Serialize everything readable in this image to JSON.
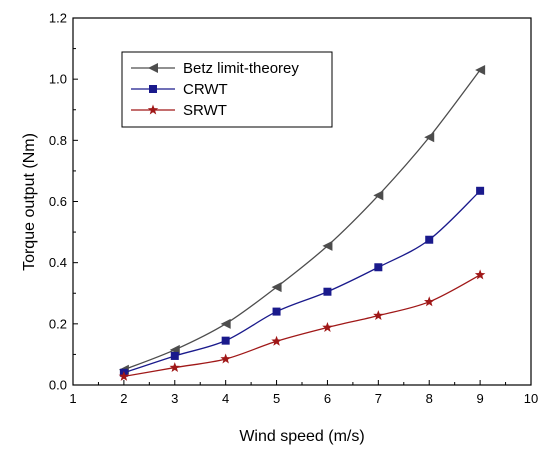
{
  "chart_data": {
    "type": "line",
    "title": "",
    "xlabel": "Wind speed (m/s)",
    "ylabel": "Torque output (Nm)",
    "xlim": [
      1,
      10
    ],
    "ylim": [
      0,
      1.2
    ],
    "x_ticks": [
      "1",
      "2",
      "3",
      "4",
      "5",
      "6",
      "7",
      "8",
      "9",
      "10"
    ],
    "y_ticks": [
      "0.0",
      "0.2",
      "0.4",
      "0.6",
      "0.8",
      "1.0",
      "1.2"
    ],
    "x": [
      2,
      3,
      4,
      5,
      6,
      7,
      8,
      9
    ],
    "grid": false,
    "legend_position": "top-left",
    "series": [
      {
        "name": "Betz limit-theorey",
        "color": "#4d4d4d",
        "marker": "triangle-left",
        "values": [
          0.05,
          0.115,
          0.2,
          0.32,
          0.455,
          0.62,
          0.81,
          1.03
        ]
      },
      {
        "name": "CRWT",
        "color": "#1a1a8c",
        "marker": "square",
        "values": [
          0.04,
          0.095,
          0.145,
          0.24,
          0.305,
          0.385,
          0.475,
          0.635
        ]
      },
      {
        "name": "SRWT",
        "color": "#a01818",
        "marker": "star",
        "values": [
          0.028,
          0.057,
          0.085,
          0.143,
          0.188,
          0.227,
          0.272,
          0.36
        ]
      }
    ]
  }
}
